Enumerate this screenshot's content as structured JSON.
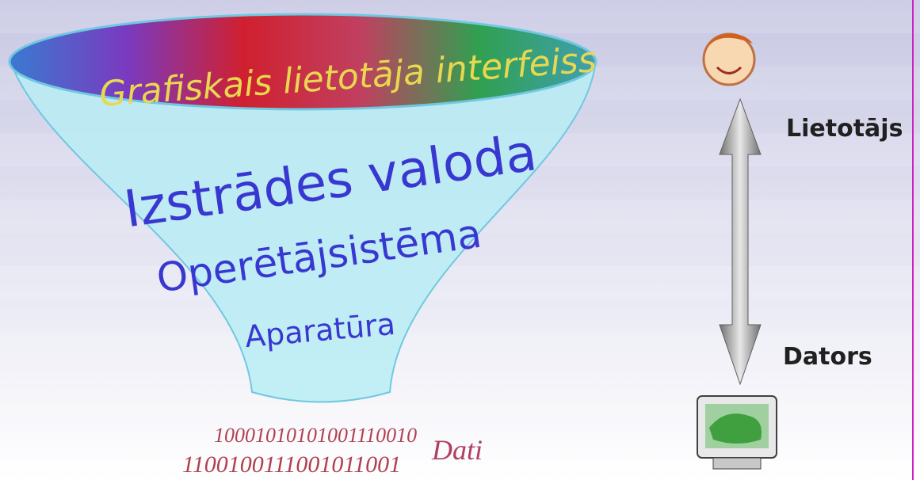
{
  "funnel": {
    "top": "Grafiskais lietotāja interfeiss",
    "layers": [
      "Izstrādes valoda",
      "Operētājsistēma",
      "Aparatūra"
    ]
  },
  "data": {
    "label": "Dati",
    "binary": [
      "10001010101001110010",
      "1100100111001011001"
    ]
  },
  "side": {
    "user": "Lietotājs",
    "computer": "Dators"
  }
}
